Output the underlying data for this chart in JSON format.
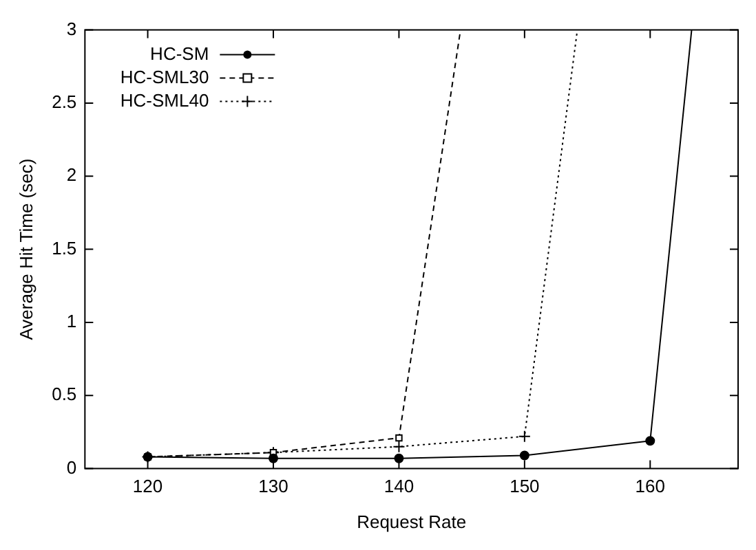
{
  "chart_data": {
    "type": "line",
    "xlabel": "Request Rate",
    "ylabel": "Average Hit Time (sec)",
    "xlim": [
      115,
      167
    ],
    "xticks": [
      120,
      130,
      140,
      150,
      160
    ],
    "ylim": [
      0,
      3
    ],
    "yticks": [
      0,
      0.5,
      1,
      1.5,
      2,
      2.5,
      3
    ],
    "grid": false,
    "legend": "top left",
    "series": [
      {
        "name": "HC-SM",
        "color": "#000000",
        "marker": "circle",
        "line_style": "solid",
        "x": [
          120,
          130,
          140,
          150,
          160,
          163.3
        ],
        "values": [
          0.08,
          0.07,
          0.07,
          0.09,
          0.19,
          3
        ]
      },
      {
        "name": "HC-SML30",
        "color": "#000000",
        "marker": "square",
        "line_style": "dashed",
        "x": [
          120,
          130,
          140,
          144.9
        ],
        "values": [
          0.08,
          0.11,
          0.21,
          3
        ]
      },
      {
        "name": "HC-SML40",
        "color": "#000000",
        "marker": "cross",
        "line_style": "dotted",
        "x": [
          120,
          130,
          140,
          150,
          154.2
        ],
        "values": [
          0.08,
          0.11,
          0.15,
          0.22,
          3
        ]
      }
    ]
  }
}
